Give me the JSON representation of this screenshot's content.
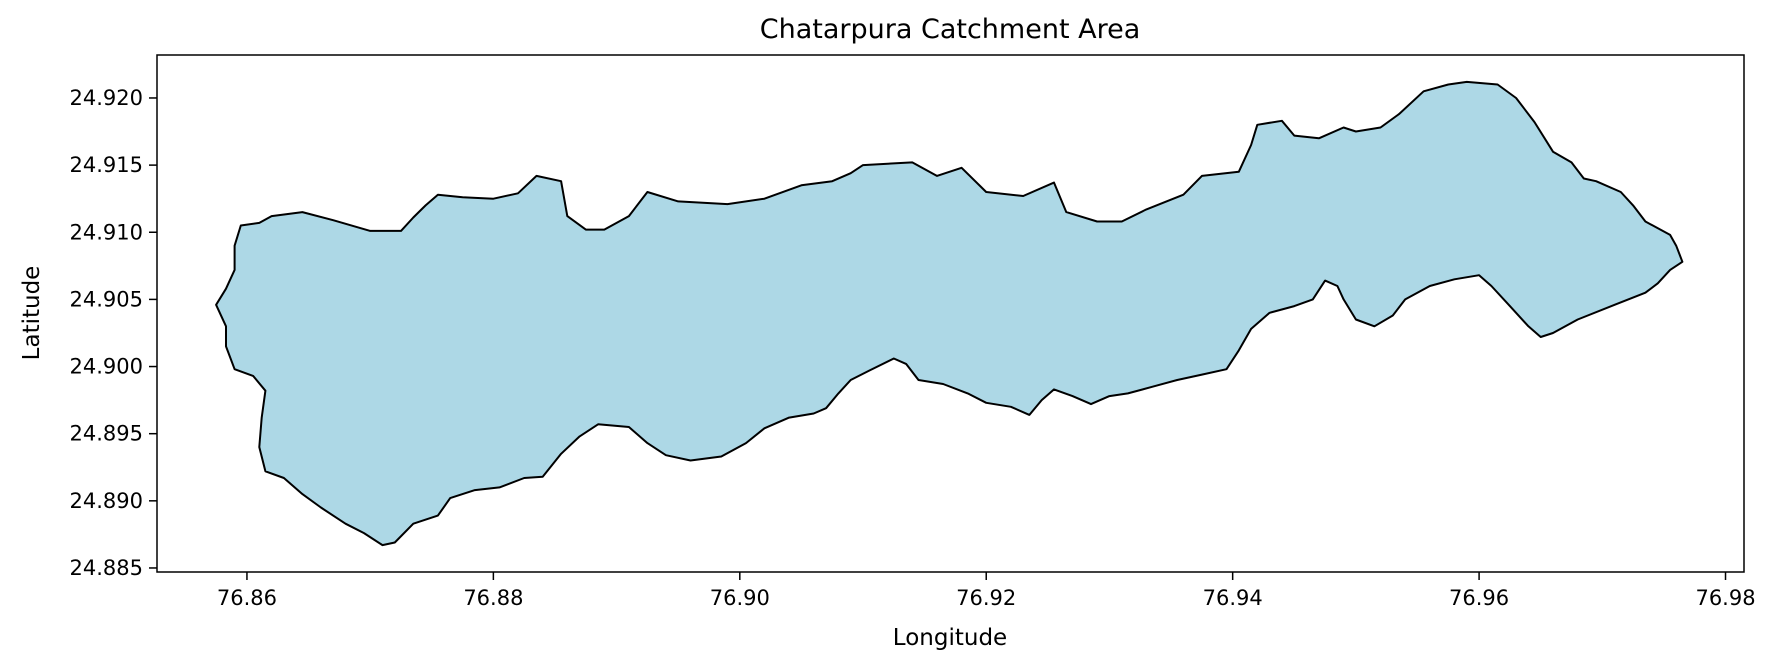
{
  "chart_data": {
    "type": "area",
    "title": "Chatarpura Catchment Area",
    "xlabel": "Longitude",
    "ylabel": "Latitude",
    "xlim": [
      76.8527,
      76.9815
    ],
    "ylim": [
      24.8847,
      24.9232
    ],
    "x_ticks": [
      76.86,
      76.88,
      76.9,
      76.92,
      76.94,
      76.96,
      76.98
    ],
    "x_tick_labels": [
      "76.86",
      "76.88",
      "76.90",
      "76.92",
      "76.94",
      "76.96",
      "76.98"
    ],
    "y_ticks": [
      24.885,
      24.89,
      24.895,
      24.9,
      24.905,
      24.91,
      24.915,
      24.92
    ],
    "y_tick_labels": [
      "24.885",
      "24.890",
      "24.895",
      "24.900",
      "24.905",
      "24.910",
      "24.915",
      "24.920"
    ],
    "grid": false,
    "fill_color": "#add8e6",
    "edge_color": "#000000",
    "boundary": [
      [
        76.8595,
        24.9105
      ],
      [
        76.861,
        24.9107
      ],
      [
        76.862,
        24.9112
      ],
      [
        76.8645,
        24.9115
      ],
      [
        76.867,
        24.9109
      ],
      [
        76.87,
        24.9101
      ],
      [
        76.8725,
        24.9101
      ],
      [
        76.8735,
        24.9111
      ],
      [
        76.8745,
        24.912
      ],
      [
        76.8755,
        24.9128
      ],
      [
        76.8775,
        24.9126
      ],
      [
        76.88,
        24.9125
      ],
      [
        76.882,
        24.9129
      ],
      [
        76.8835,
        24.9142
      ],
      [
        76.8855,
        24.9138
      ],
      [
        76.886,
        24.9112
      ],
      [
        76.8875,
        24.9102
      ],
      [
        76.889,
        24.9102
      ],
      [
        76.891,
        24.9112
      ],
      [
        76.8925,
        24.913
      ],
      [
        76.895,
        24.9123
      ],
      [
        76.899,
        24.9121
      ],
      [
        76.902,
        24.9125
      ],
      [
        76.905,
        24.9135
      ],
      [
        76.9075,
        24.9138
      ],
      [
        76.909,
        24.9144
      ],
      [
        76.91,
        24.915
      ],
      [
        76.914,
        24.9152
      ],
      [
        76.916,
        24.9142
      ],
      [
        76.918,
        24.9148
      ],
      [
        76.92,
        24.913
      ],
      [
        76.923,
        24.9127
      ],
      [
        76.9255,
        24.9137
      ],
      [
        76.9265,
        24.9115
      ],
      [
        76.929,
        24.9108
      ],
      [
        76.931,
        24.9108
      ],
      [
        76.933,
        24.9117
      ],
      [
        76.936,
        24.9128
      ],
      [
        76.9375,
        24.9142
      ],
      [
        76.9405,
        24.9145
      ],
      [
        76.9415,
        24.9165
      ],
      [
        76.942,
        24.918
      ],
      [
        76.944,
        24.9183
      ],
      [
        76.945,
        24.9172
      ],
      [
        76.947,
        24.917
      ],
      [
        76.949,
        24.9178
      ],
      [
        76.95,
        24.9175
      ],
      [
        76.952,
        24.9178
      ],
      [
        76.9535,
        24.9188
      ],
      [
        76.9555,
        24.9205
      ],
      [
        76.9575,
        24.921
      ],
      [
        76.959,
        24.9212
      ],
      [
        76.9615,
        24.921
      ],
      [
        76.963,
        24.92
      ],
      [
        76.9645,
        24.9182
      ],
      [
        76.966,
        24.916
      ],
      [
        76.9675,
        24.9152
      ],
      [
        76.9685,
        24.914
      ],
      [
        76.9695,
        24.9138
      ],
      [
        76.9715,
        24.913
      ],
      [
        76.9725,
        24.912
      ],
      [
        76.9735,
        24.9108
      ],
      [
        76.9755,
        24.9098
      ],
      [
        76.976,
        24.909
      ],
      [
        76.9765,
        24.9078
      ],
      [
        76.9755,
        24.9072
      ],
      [
        76.9745,
        24.9062
      ],
      [
        76.9735,
        24.9055
      ],
      [
        76.971,
        24.9046
      ],
      [
        76.968,
        24.9035
      ],
      [
        76.966,
        24.9025
      ],
      [
        76.965,
        24.9022
      ],
      [
        76.964,
        24.903
      ],
      [
        76.9625,
        24.9045
      ],
      [
        76.961,
        24.906
      ],
      [
        76.96,
        24.9068
      ],
      [
        76.958,
        24.9065
      ],
      [
        76.956,
        24.906
      ],
      [
        76.954,
        24.905
      ],
      [
        76.953,
        24.9038
      ],
      [
        76.9515,
        24.903
      ],
      [
        76.95,
        24.9035
      ],
      [
        76.949,
        24.905
      ],
      [
        76.9485,
        24.906
      ],
      [
        76.9475,
        24.9064
      ],
      [
        76.9465,
        24.905
      ],
      [
        76.945,
        24.9045
      ],
      [
        76.943,
        24.904
      ],
      [
        76.9415,
        24.9028
      ],
      [
        76.9405,
        24.9012
      ],
      [
        76.9395,
        24.8998
      ],
      [
        76.9375,
        24.8994
      ],
      [
        76.9355,
        24.899
      ],
      [
        76.9335,
        24.8985
      ],
      [
        76.9315,
        24.898
      ],
      [
        76.93,
        24.8978
      ],
      [
        76.9285,
        24.8972
      ],
      [
        76.927,
        24.8978
      ],
      [
        76.9255,
        24.8983
      ],
      [
        76.9245,
        24.8975
      ],
      [
        76.9235,
        24.8964
      ],
      [
        76.922,
        24.897
      ],
      [
        76.92,
        24.8973
      ],
      [
        76.9185,
        24.898
      ],
      [
        76.9165,
        24.8987
      ],
      [
        76.9145,
        24.899
      ],
      [
        76.9135,
        24.9002
      ],
      [
        76.9125,
        24.9006
      ],
      [
        76.9105,
        24.8997
      ],
      [
        76.909,
        24.899
      ],
      [
        76.908,
        24.898
      ],
      [
        76.907,
        24.8969
      ],
      [
        76.906,
        24.8965
      ],
      [
        76.904,
        24.8962
      ],
      [
        76.902,
        24.8954
      ],
      [
        76.9005,
        24.8943
      ],
      [
        76.8985,
        24.8933
      ],
      [
        76.896,
        24.893
      ],
      [
        76.894,
        24.8934
      ],
      [
        76.8925,
        24.8943
      ],
      [
        76.891,
        24.8955
      ],
      [
        76.8885,
        24.8957
      ],
      [
        76.887,
        24.8948
      ],
      [
        76.8855,
        24.8935
      ],
      [
        76.884,
        24.8918
      ],
      [
        76.8825,
        24.8917
      ],
      [
        76.8805,
        24.891
      ],
      [
        76.8785,
        24.8908
      ],
      [
        76.8765,
        24.8902
      ],
      [
        76.8755,
        24.8889
      ],
      [
        76.8735,
        24.8883
      ],
      [
        76.872,
        24.8869
      ],
      [
        76.871,
        24.8867
      ],
      [
        76.8695,
        24.8876
      ],
      [
        76.868,
        24.8883
      ],
      [
        76.866,
        24.8895
      ],
      [
        76.8645,
        24.8905
      ],
      [
        76.863,
        24.8917
      ],
      [
        76.8615,
        24.8922
      ],
      [
        76.861,
        24.894
      ],
      [
        76.8612,
        24.8962
      ],
      [
        76.8615,
        24.8982
      ],
      [
        76.8605,
        24.8993
      ],
      [
        76.859,
        24.8998
      ],
      [
        76.8583,
        24.9015
      ],
      [
        76.8583,
        24.903
      ],
      [
        76.8575,
        24.9046
      ],
      [
        76.8583,
        24.9058
      ],
      [
        76.859,
        24.9072
      ],
      [
        76.859,
        24.909
      ]
    ]
  }
}
